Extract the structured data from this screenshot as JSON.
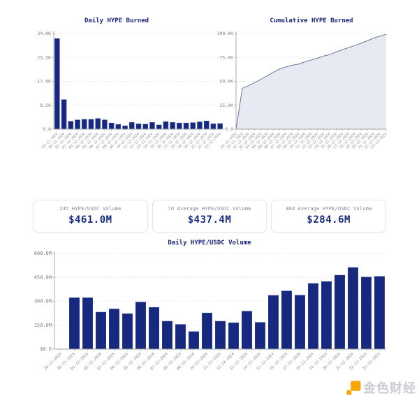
{
  "colors": {
    "bar": "#17297f",
    "bar_edge": "#3548a3",
    "area_fill": "#e4e8f2",
    "area_line": "#5b688f",
    "grid": "#e0e0e0",
    "axis": "#a3a3a3",
    "tick_label": "#7e7e7e",
    "date_label": "#8c8c8c",
    "title": "#1a237e",
    "card_value": "#152a80",
    "watermark_orange": "#f7a600",
    "watermark_gray": "#c9ccd2"
  },
  "cards": [
    {
      "label": "24h HYPE/USDC Volume",
      "value": "$461.0M"
    },
    {
      "label": "7d Average HYPE/USDC Volume",
      "value": "$437.4M"
    },
    {
      "label": "30d Average HYPE/USDC Volume",
      "value": "$284.6M"
    }
  ],
  "watermark": {
    "text": "金色财经",
    "logo": "jinse-diamond"
  },
  "chart_data": [
    {
      "id": "daily-burned",
      "type": "bar",
      "title": "Daily HYPE Burned",
      "xlabel": "",
      "ylabel": "",
      "grid": true,
      "legend": "none",
      "ylim": [
        0,
        34000
      ],
      "yticks": [
        {
          "value": 34000,
          "label": "34.0K"
        },
        {
          "value": 25500,
          "label": "25.5K"
        },
        {
          "value": 17000,
          "label": "17.0K"
        },
        {
          "value": 8500,
          "label": "8.5K"
        },
        {
          "value": 0,
          "label": "0.0"
        }
      ],
      "categories": [
        "29-11-2024",
        "30-11-2024",
        "01-12-2024",
        "02-12-2024",
        "03-12-2024",
        "04-12-2024",
        "05-12-2024",
        "06-12-2024",
        "07-12-2024",
        "08-12-2024",
        "09-12-2024",
        "10-12-2024",
        "11-12-2024",
        "12-12-2024",
        "13-12-2024",
        "14-12-2024",
        "15-12-2024",
        "16-12-2024",
        "17-12-2024",
        "18-12-2024",
        "19-12-2024",
        "20-12-2024",
        "21-12-2024",
        "22-12-2024",
        "23-12-2024"
      ],
      "values": [
        32200,
        10500,
        2800,
        3300,
        3500,
        3500,
        3800,
        3300,
        2200,
        1700,
        1200,
        2400,
        1900,
        1800,
        2400,
        1500,
        2700,
        2400,
        2200,
        2200,
        2300,
        2600,
        2900,
        1900,
        2000
      ]
    },
    {
      "id": "cumulative-burned",
      "type": "area",
      "title": "Cumulative HYPE Burned",
      "xlabel": "",
      "ylabel": "",
      "grid": true,
      "legend": "none",
      "ylim": [
        0,
        100000
      ],
      "yticks": [
        {
          "value": 100000,
          "label": "100.0K"
        },
        {
          "value": 75000,
          "label": "75.0K"
        },
        {
          "value": 50000,
          "label": "50.0K"
        },
        {
          "value": 25000,
          "label": "25.0K"
        },
        {
          "value": 0,
          "label": "0.0"
        }
      ],
      "categories": [
        "29-11-2024",
        "30-11-2024",
        "01-12-2024",
        "02-12-2024",
        "03-12-2024",
        "04-12-2024",
        "05-12-2024",
        "06-12-2024",
        "07-12-2024",
        "08-12-2024",
        "09-12-2024",
        "10-12-2024",
        "11-12-2024",
        "12-12-2024",
        "13-12-2024",
        "14-12-2024",
        "15-12-2024",
        "16-12-2024",
        "17-12-2024",
        "18-12-2024",
        "19-12-2024",
        "20-12-2024",
        "21-12-2024",
        "22-12-2024",
        "23-12-2024"
      ],
      "values": [
        0,
        42700,
        45500,
        48800,
        52300,
        55800,
        59600,
        62900,
        65100,
        66800,
        68000,
        70400,
        72300,
        74100,
        76500,
        78000,
        80700,
        83100,
        85300,
        87500,
        89800,
        92400,
        95300,
        97200,
        99200
      ]
    },
    {
      "id": "daily-volume",
      "type": "bar",
      "title": "Daily HYPE/USDC Volume",
      "xlabel": "",
      "ylabel": "",
      "grid": true,
      "legend": "none",
      "unit": "M USD",
      "ylim": [
        0,
        600
      ],
      "yticks": [
        {
          "value": 600,
          "label": "600.0M"
        },
        {
          "value": 450,
          "label": "450.0M"
        },
        {
          "value": 300,
          "label": "300.0M"
        },
        {
          "value": 150,
          "label": "150.0M"
        },
        {
          "value": 0,
          "label": "$0.0"
        }
      ],
      "categories": [
        "29-11-2024",
        "30-11-2024",
        "01-12-2024",
        "02-12-2024",
        "03-12-2024",
        "04-12-2024",
        "05-12-2024",
        "06-12-2024",
        "07-12-2024",
        "08-12-2024",
        "09-12-2024",
        "10-12-2024",
        "11-12-2024",
        "12-12-2024",
        "13-12-2024",
        "14-12-2024",
        "15-12-2024",
        "16-12-2024",
        "17-12-2024",
        "18-12-2024",
        "19-12-2024",
        "20-12-2024",
        "21-12-2024",
        "22-12-2024",
        "23-12-2024"
      ],
      "values": [
        0,
        322,
        322,
        232,
        252,
        222,
        295,
        262,
        175,
        155,
        110,
        227,
        175,
        165,
        238,
        168,
        337,
        365,
        338,
        412,
        424,
        464,
        512,
        452,
        456
      ]
    }
  ]
}
